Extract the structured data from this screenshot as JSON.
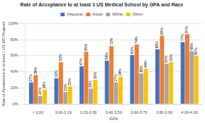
{
  "chart_data": {
    "type": "bar",
    "title": "Rate of Acceptance to at least 1 US Medical School by GPA and Race",
    "xlabel": "GPA",
    "ylabel": "Rate of Acceptance to at least 1 US MD Program",
    "categories": [
      "< 3.00",
      "3.00-3.19",
      "3.20-3.39",
      "3.40-3.59",
      "3.60-3.79",
      "3.80-3.99",
      "4.00-4.00"
    ],
    "series": [
      {
        "name": "Hispanic",
        "color": "#4472C4",
        "values": [
          27.0,
          32.0,
          47.0,
          54.0,
          61.0,
          68.0,
          77.0
        ],
        "value_labels": [
          "27%",
          "32%",
          "47%",
          "54%",
          "61%",
          "68%",
          "77%"
        ]
      },
      {
        "name": "Asian",
        "color": "#ED7D31",
        "values": [
          36.0,
          52.0,
          65.0,
          72.0,
          74.0,
          85.0,
          87.0
        ],
        "value_labels": [
          "36%",
          "52%",
          "65%",
          "72%",
          "74%",
          "85%",
          "87%"
        ]
      },
      {
        "name": "White",
        "color": "#A5A5A5",
        "values": [
          10.0,
          15.0,
          19.0,
          27.0,
          38.0,
          50.0,
          66.0
        ],
        "value_labels": [
          "10%",
          "15%",
          "19%",
          "27%",
          "38%",
          "50%",
          "66%"
        ]
      },
      {
        "name": "Other",
        "color": "#FFC000",
        "values": [
          18.0,
          22.0,
          30.0,
          34.0,
          44.0,
          52.0,
          60.0
        ],
        "value_labels": [
          "18%",
          "22%",
          "30%",
          "34%",
          "44%",
          "52%",
          "60%"
        ]
      }
    ],
    "ylim": [
      0,
      100
    ],
    "yticks": [
      {
        "value": 0,
        "label": "0%"
      },
      {
        "value": 20,
        "label": "20%"
      },
      {
        "value": 40,
        "label": "40%"
      },
      {
        "value": 60,
        "label": "60%"
      },
      {
        "value": 80,
        "label": "80%"
      },
      {
        "value": 100,
        "label": "100%"
      }
    ],
    "grid": true,
    "legend": "top",
    "data_labels": true
  }
}
